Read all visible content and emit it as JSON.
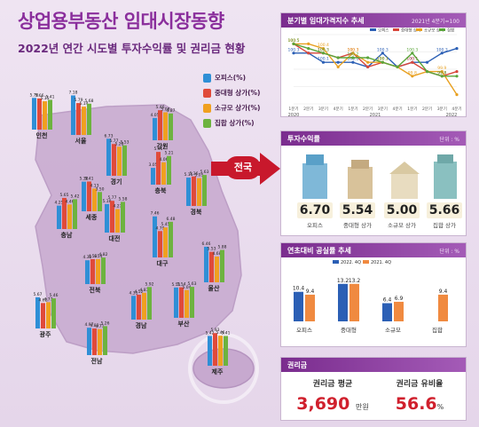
{
  "header": {
    "title": "상업용부동산 임대시장동향",
    "subtitle": "2022년 연간 시도별 투자수익률 및 권리금 현황"
  },
  "colors": {
    "office": "#2f8fd6",
    "mid_store": "#e04a3a",
    "small_store": "#f0a020",
    "complex_store": "#6db33f",
    "accent": "#8a2e9c",
    "series_2022": "#2b5fb5",
    "series_2021": "#f08a40"
  },
  "legend": {
    "items": [
      {
        "label": "오피스(%)",
        "color": "#2f8fd6"
      },
      {
        "label": "중대형 상가(%)",
        "color": "#e04a3a"
      },
      {
        "label": "소규모 상가(%)",
        "color": "#f0a020"
      },
      {
        "label": "집합 상가(%)",
        "color": "#6db33f"
      }
    ]
  },
  "map": {
    "badge": "전국"
  },
  "panels": {
    "index": {
      "title": "분기별 임대가격지수 추세",
      "unit": "2021년 4분기=100"
    },
    "returns": {
      "title": "투자수익률",
      "unit": "단위 : %"
    },
    "vacancy": {
      "title": "연초대비 공실률 추세",
      "unit": "단위 : %"
    },
    "key_money": {
      "title": "권리금",
      "avg_label": "권리금 평균",
      "avg_value": "3,690",
      "avg_unit": "만원",
      "ratio_label": "권리금 유비율",
      "ratio_value": "56.6",
      "ratio_unit": "%"
    }
  },
  "chart_data": [
    {
      "type": "bar",
      "title": "2022년 연간 시도별 투자수익률",
      "series_names": [
        "오피스",
        "중대형 상가",
        "소규모 상가",
        "집합 상가"
      ],
      "regions": [
        {
          "name": "인천",
          "values": [
            5.76,
            5.66,
            5.15,
            5.41
          ]
        },
        {
          "name": "서울",
          "values": [
            7.18,
            5.79,
            5.14,
            5.68
          ]
        },
        {
          "name": "경기",
          "values": [
            6.73,
            5.77,
            5.28,
            5.53
          ]
        },
        {
          "name": "강원",
          "values": [
            4.05,
            5.46,
            5.08,
            4.87
          ]
        },
        {
          "name": "충북",
          "values": [
            3.05,
            5.95,
            4.06,
            5.21
          ]
        },
        {
          "name": "세종",
          "values": [
            5.38,
            5.41,
            4.13,
            3.5
          ]
        },
        {
          "name": "충남",
          "values": [
            4.25,
            5.65,
            4.46,
            5.42
          ]
        },
        {
          "name": "대전",
          "values": [
            5.18,
            5.77,
            4.27,
            5.58
          ]
        },
        {
          "name": "경북",
          "values": [
            5.15,
            5.36,
            5.05,
            5.63
          ]
        },
        {
          "name": "대구",
          "values": [
            7.46,
            4.79,
            5.45,
            6.48
          ]
        },
        {
          "name": "전북",
          "values": [
            4.32,
            4.53,
            4.54,
            4.82
          ]
        },
        {
          "name": "울산",
          "values": [
            6.46,
            5.53,
            4.68,
            5.88
          ]
        },
        {
          "name": "경남",
          "values": [
            4.31,
            4.52,
            4.87,
            5.92
          ]
        },
        {
          "name": "부산",
          "values": [
            5.51,
            5.54,
            5.04,
            5.63
          ]
        },
        {
          "name": "광주",
          "values": [
            5.67,
            4.62,
            4.77,
            5.46
          ]
        },
        {
          "name": "전남",
          "values": [
            4.97,
            4.83,
            4.71,
            5.26
          ]
        },
        {
          "name": "제주",
          "values": [
            5.42,
            5.93,
            5.46,
            5.41
          ]
        }
      ]
    },
    {
      "type": "line",
      "title": "분기별 임대가격지수 추세",
      "x": [
        "1분기",
        "2분기",
        "3분기",
        "4분기",
        "1분기",
        "2분기",
        "3분기",
        "4분기",
        "1분기",
        "2분기",
        "3분기",
        "4분기"
      ],
      "years": [
        "2020",
        "2021",
        "2022"
      ],
      "series": [
        {
          "name": "오피스",
          "values": [
            100.3,
            100.3,
            100.1,
            100.1,
            100.1,
            100.0,
            100.3,
            100.0,
            100.1,
            100.1,
            100.3,
            100.4
          ]
        },
        {
          "name": "중대형 상가",
          "values": [
            100.5,
            100.3,
            100.3,
            100.2,
            100.3,
            100.0,
            100.1,
            100.0,
            100.1,
            99.9,
            99.8,
            99.9
          ]
        },
        {
          "name": "소규모 상가",
          "values": [
            100.5,
            100.5,
            100.4,
            100.0,
            100.3,
            100.1,
            100.1,
            100.0,
            99.8,
            99.9,
            99.9,
            99.4
          ]
        },
        {
          "name": "집합",
          "values": [
            100.5,
            100.4,
            100.3,
            100.2,
            100.2,
            100.2,
            100.1,
            100.0,
            100.3,
            99.9,
            99.8,
            99.8
          ]
        }
      ]
    },
    {
      "type": "bar",
      "title": "투자수익률",
      "categories": [
        "오피스",
        "중대형 상가",
        "소규모 상가",
        "집합 상가"
      ],
      "values": [
        6.7,
        5.54,
        5.0,
        5.66
      ]
    },
    {
      "type": "bar",
      "title": "연초대비 공실률 추세",
      "categories": [
        "오피스",
        "중대형",
        "소규모",
        "집합"
      ],
      "series": [
        {
          "name": "2022. 4Q",
          "values": [
            10.4,
            13.2,
            6.4,
            null
          ]
        },
        {
          "name": "2021. 4Q",
          "values": [
            9.4,
            13.2,
            6.9,
            9.4
          ]
        }
      ]
    }
  ]
}
